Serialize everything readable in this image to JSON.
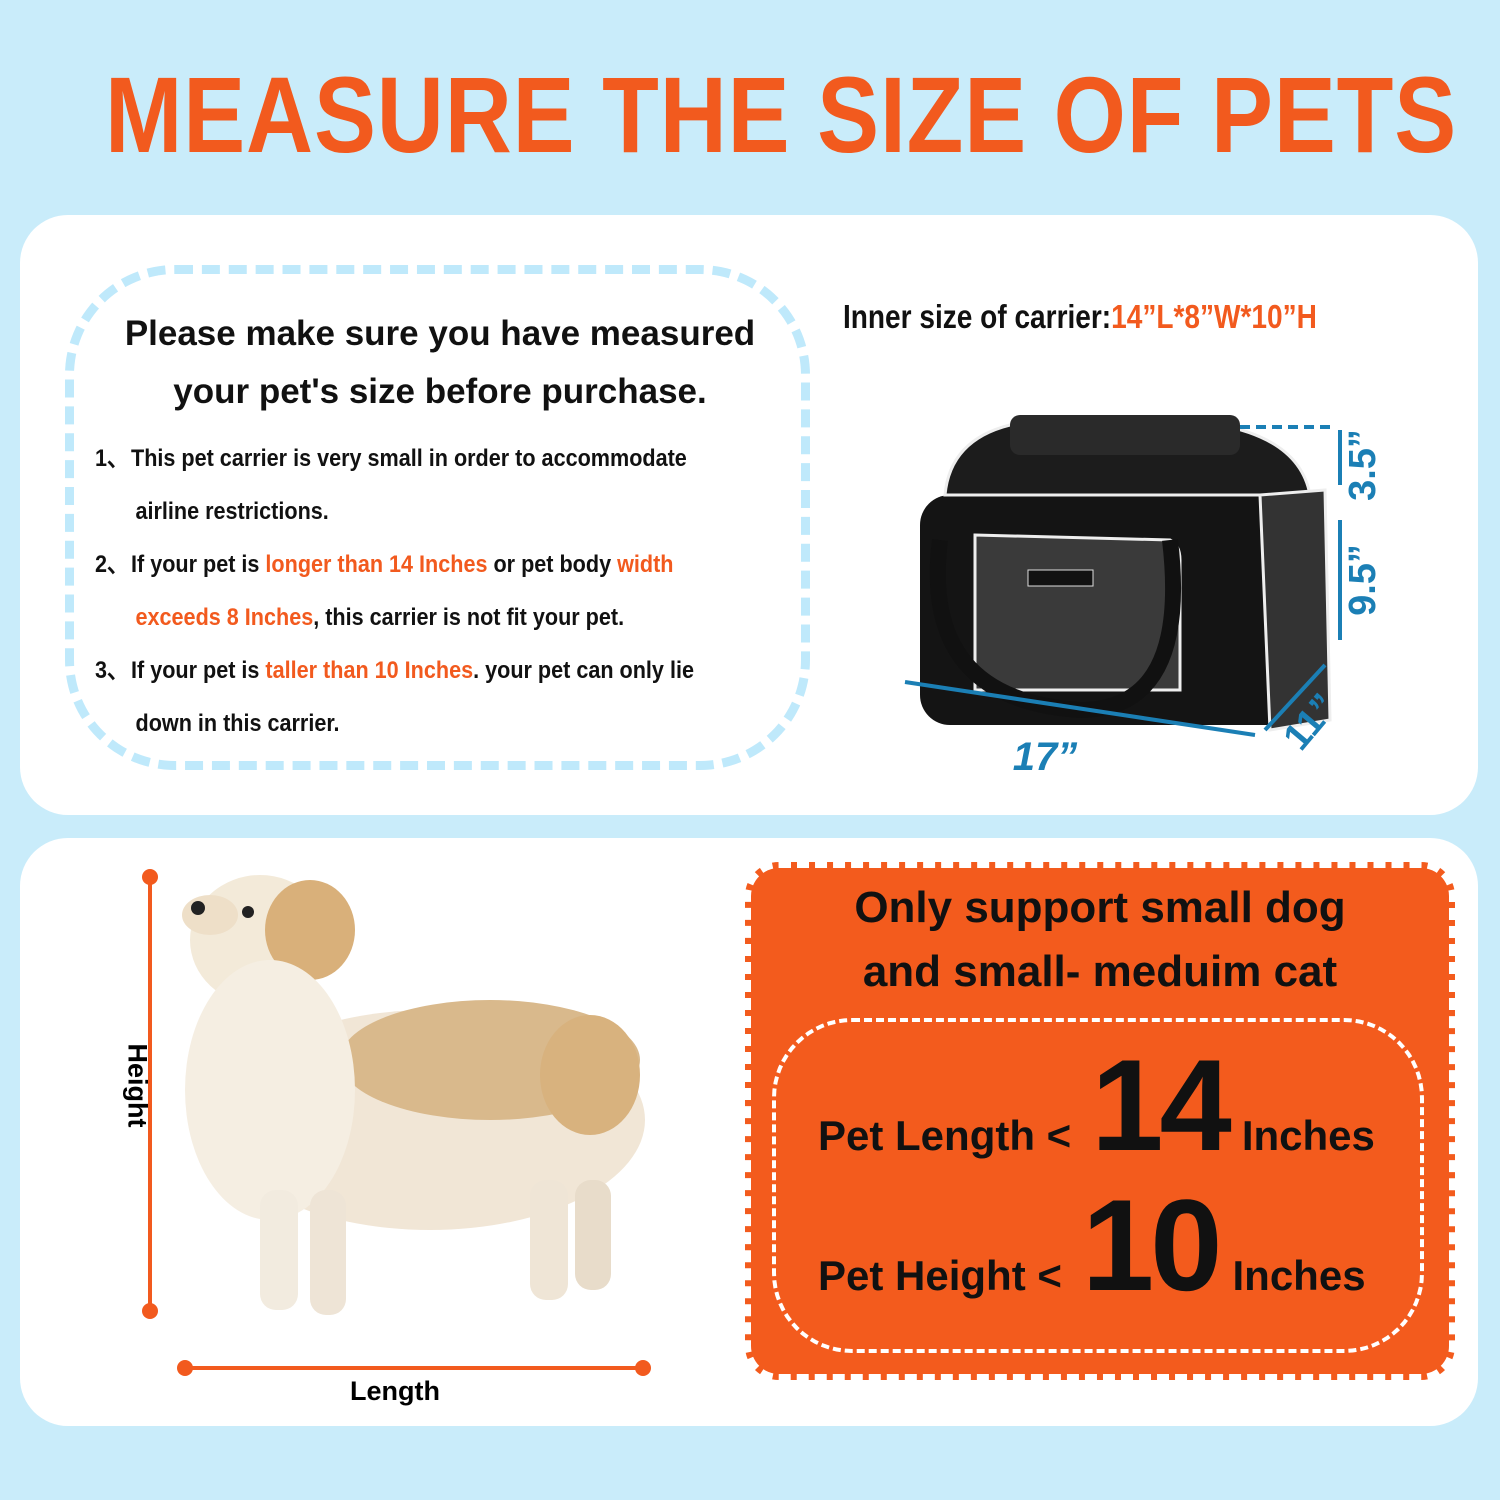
{
  "title": "MEASURE THE SIZE OF PETS",
  "notice": {
    "line1": "Please make sure you have measured",
    "line2": "your pet's size before purchase."
  },
  "list": [
    {
      "num": "1、",
      "a": "This pet carrier is very small in order  to accommodate",
      "b": "airline restrictions."
    },
    {
      "num": "2、",
      "a1": "If your pet is ",
      "a2": "longer than 14 Inches",
      "a3": " or pet body ",
      "a4": "width",
      "b1": "exceeds 8 Inches",
      "b2": ", this carrier is not fit your pet."
    },
    {
      "num": "3、",
      "a1": "If your pet is ",
      "a2": "taller than 10 Inches",
      "a3": ". your pet can only lie",
      "b": "down in this carrier."
    }
  ],
  "inner_size": {
    "label": "Inner size of carrier:",
    "value": "14”L*8”W*10”H"
  },
  "carrier_dims": {
    "top": "3.5”",
    "height": "9.5”",
    "length": "17”",
    "depth": "11”"
  },
  "dog_labels": {
    "height": "Height",
    "length": "Length"
  },
  "support": {
    "line1": "Only support small dog",
    "line2": "and small- meduim cat"
  },
  "limits": [
    {
      "label": "Pet Length <",
      "value": "14",
      "unit": "Inches"
    },
    {
      "label": "Pet Height <",
      "value": "10",
      "unit": "Inches"
    }
  ],
  "colors": {
    "accent": "#f25a1e",
    "background": "#c9ecfa",
    "dimension": "#1b7fb5"
  }
}
